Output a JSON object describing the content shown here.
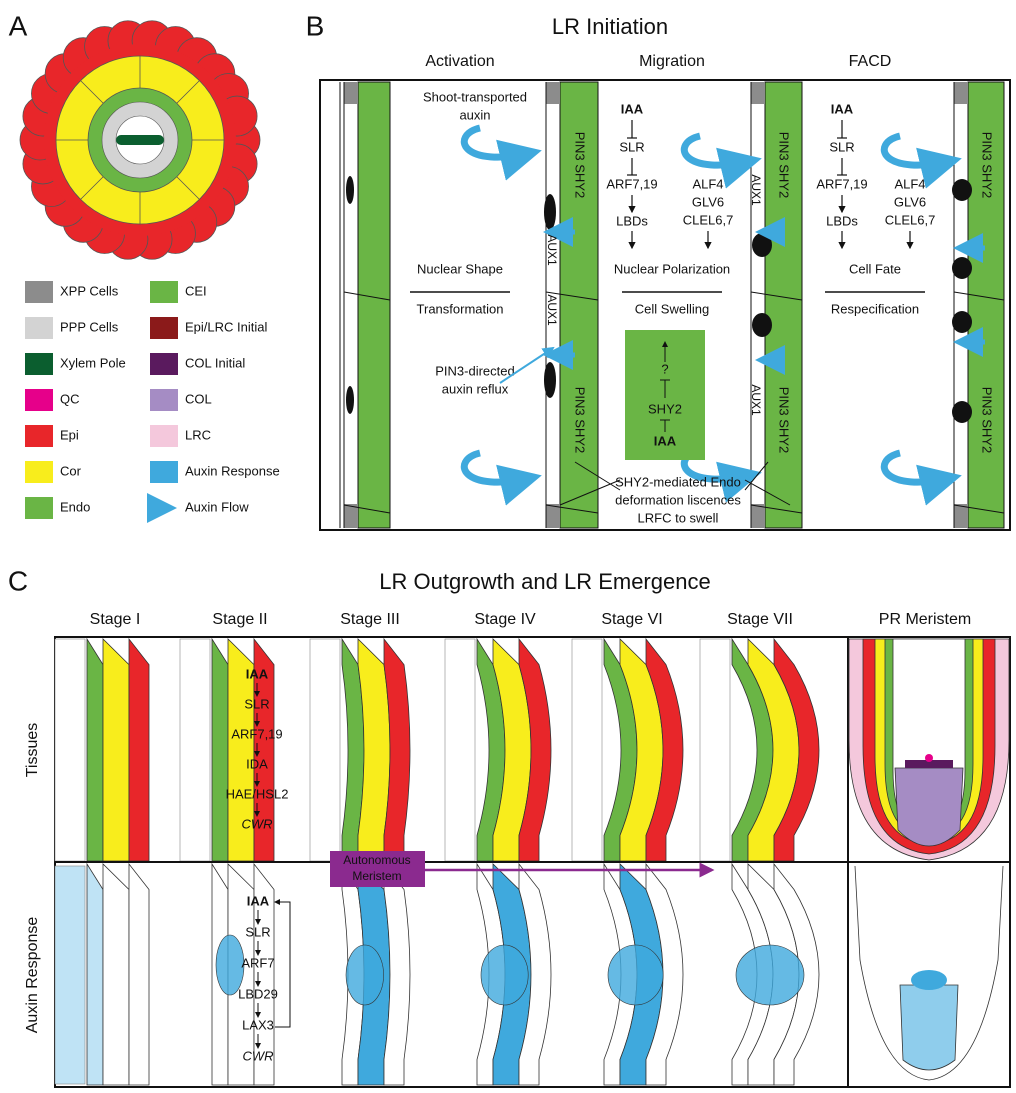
{
  "panel_a": {
    "letter": "A",
    "legend": [
      {
        "label": "XPP Cells",
        "color": "#8c8c8c"
      },
      {
        "label": "PPP Cells",
        "color": "#d3d3d3"
      },
      {
        "label": "Xylem Pole",
        "color": "#0b5e2f"
      },
      {
        "label": "QC",
        "color": "#e6008a"
      },
      {
        "label": "Epi",
        "color": "#e8262a"
      },
      {
        "label": "Cor",
        "color": "#f8ed1c"
      },
      {
        "label": "Endo",
        "color": "#6ab545"
      },
      {
        "label": "CEI",
        "color": "#6ab545"
      },
      {
        "label": "Epi/LRC Initial",
        "color": "#8b1a1a"
      },
      {
        "label": "COL Initial",
        "color": "#5a1a5e"
      },
      {
        "label": "COL",
        "color": "#a58cc4"
      },
      {
        "label": "LRC",
        "color": "#f4c8dc"
      },
      {
        "label": "Auxin Response",
        "color": "#3fa9dd"
      },
      {
        "label": "Auxin Flow",
        "color": "#3fa9dd",
        "marker": "arrow"
      }
    ]
  },
  "panel_b": {
    "letter": "B",
    "title": "LR Initiation",
    "stages": [
      "Activation",
      "Migration",
      "FACD"
    ],
    "shoot_auxin": [
      "Shoot-transported",
      "auxin"
    ],
    "reflux": [
      "PIN3-directed",
      "auxin reflux"
    ],
    "pin_labels": [
      "PIN3 SHY2",
      "PIN3 SHY2",
      "PIN3 SHY2",
      "PIN3 SHY2",
      "PIN3 SHY2",
      "PIN3 SHY2"
    ],
    "aux_labels": [
      "AUX1",
      "AUX1",
      "AUX1",
      "AUX1"
    ],
    "pathways": [
      {
        "left": [
          "IAA",
          "SLR",
          "ARF7,19",
          "LBDs"
        ],
        "right": [
          "ALF4",
          "GLV6",
          "CLEL6,7"
        ]
      },
      {
        "left": [
          "IAA",
          "SLR",
          "ARF7,19",
          "LBDs"
        ],
        "right": [
          "ALF4",
          "GLV6",
          "CLEL6,7"
        ]
      }
    ],
    "processes": [
      [
        "Nuclear Shape",
        "Transformation"
      ],
      [
        "Nuclear Polarization",
        "Cell Swelling"
      ],
      [
        "Cell Fate",
        "Respecification"
      ]
    ],
    "green_box": [
      "?",
      "SHY2",
      "IAA"
    ],
    "note": [
      "SHY2-mediated Endo",
      "deformation liscences",
      "LRFC to swell"
    ]
  },
  "panel_c": {
    "letter": "C",
    "title": "LR Outgrowth and LR Emergence",
    "stages": [
      "Stage I",
      "Stage II",
      "Stage III",
      "Stage IV",
      "Stage VI",
      "Stage VII",
      "PR Meristem"
    ],
    "rows": [
      "Tissues",
      "Auxin Response"
    ],
    "tissue_pathway": [
      "IAA",
      "SLR",
      "ARF7,19",
      "IDA",
      "HAE/HSL2",
      "CWR"
    ],
    "auxin_pathway": [
      "IAA",
      "SLR",
      "ARF7",
      "LBD29",
      "LAX3",
      "CWR"
    ],
    "meristem_label": [
      "Autonomous",
      "Meristem"
    ]
  }
}
